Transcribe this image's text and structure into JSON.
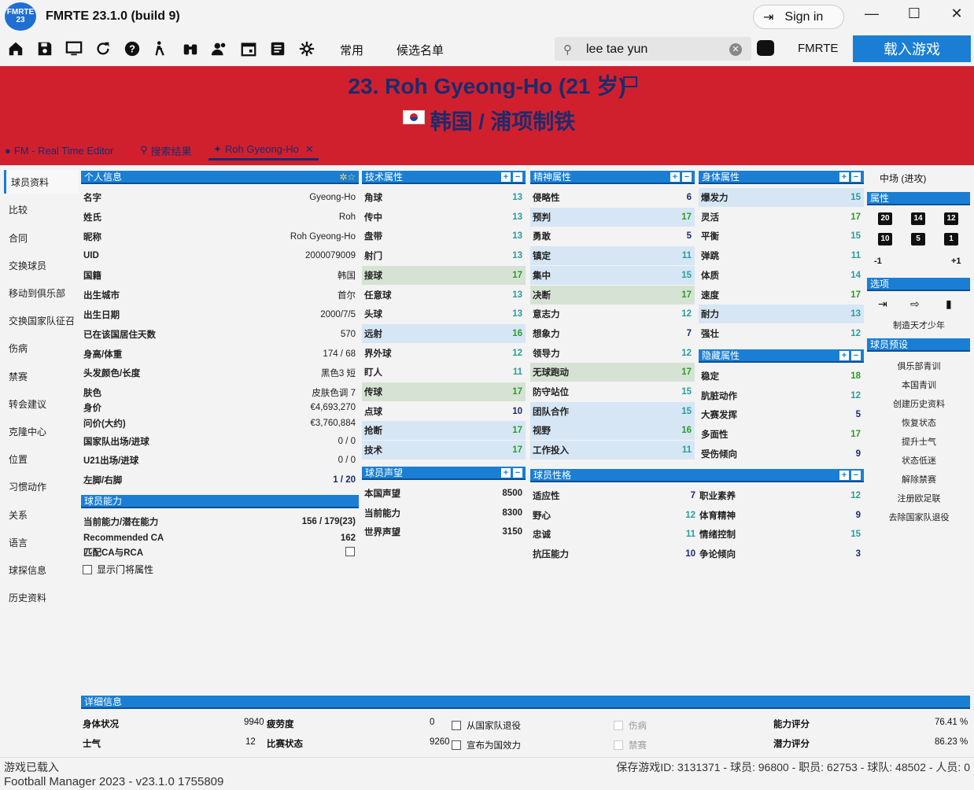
{
  "app": {
    "logo": "FMRTE 23",
    "title": "FMRTE 23.1.0 (build 9)",
    "signin": "Sign in"
  },
  "toolbar": {
    "common": "常用",
    "shortlist": "候选名单",
    "search_value": "lee tae yun",
    "fmrte": "FMRTE",
    "load_game": "载入游戏"
  },
  "header": {
    "player_title": "23. Roh Gyeong-Ho (21 岁)",
    "club": "韩国 / 浦项制铁"
  },
  "tabs": [
    "FM - Real Time Editor",
    "搜索结果",
    "Roh Gyeong-Ho"
  ],
  "sidenav": [
    "球员资料",
    "比较",
    "合同",
    "交换球员",
    "移动到俱乐部",
    "交换国家队征召",
    "伤病",
    "禁赛",
    "转会建议",
    "克隆中心",
    "位置",
    "习惯动作",
    "关系",
    "语言",
    "球探信息",
    "历史资料"
  ],
  "personal": {
    "title": "个人信息",
    "rows": [
      {
        "label": "名字",
        "value": "Gyeong-Ho"
      },
      {
        "label": "姓氏",
        "value": "Roh"
      },
      {
        "label": "昵称",
        "value": "Roh Gyeong-Ho"
      },
      {
        "label": "UID",
        "value": "2000079009"
      },
      {
        "label": "国籍",
        "value": "韩国"
      },
      {
        "label": "出生城市",
        "value": "首尔"
      },
      {
        "label": "出生日期",
        "value": "2000/7/5"
      },
      {
        "label": "已在该国居住天数",
        "value": "570"
      },
      {
        "label": "身高/体重",
        "value": "174 / 68"
      },
      {
        "label": "头发颜色/长度",
        "value": "黑色3   短"
      },
      {
        "label": "肤色",
        "value": "皮肤色调 7"
      },
      {
        "label": "身价",
        "value": "€4,693,270"
      },
      {
        "label": "问价(大约)",
        "value": "€3,760,884"
      },
      {
        "label": "国家队出场/进球",
        "value": "0 / 0"
      },
      {
        "label": "U21出场/进球",
        "value": "0 / 0"
      },
      {
        "label": "左脚/右脚",
        "value": "1 / 20"
      }
    ]
  },
  "ability": {
    "title": "球员能力",
    "rows": [
      {
        "label": "当前能力/潜在能力",
        "value": "156 / 179(23)"
      },
      {
        "label": "Recommended CA",
        "value": "162"
      },
      {
        "label": "匹配CA与RCA",
        "value": ""
      }
    ],
    "show_gk": "显示门将属性"
  },
  "technical": {
    "title": "技术属性",
    "rows": [
      {
        "label": "角球",
        "value": "13"
      },
      {
        "label": "传中",
        "value": "13"
      },
      {
        "label": "盘带",
        "value": "13"
      },
      {
        "label": "射门",
        "value": "13"
      },
      {
        "label": "接球",
        "value": "17"
      },
      {
        "label": "任意球",
        "value": "13"
      },
      {
        "label": "头球",
        "value": "13"
      },
      {
        "label": "远射",
        "value": "16"
      },
      {
        "label": "界外球",
        "value": "12"
      },
      {
        "label": "盯人",
        "value": "11"
      },
      {
        "label": "传球",
        "value": "17"
      },
      {
        "label": "点球",
        "value": "10"
      },
      {
        "label": "抢断",
        "value": "17"
      },
      {
        "label": "技术",
        "value": "17"
      }
    ]
  },
  "mental": {
    "title": "精神属性",
    "rows": [
      {
        "label": "侵略性",
        "value": "6"
      },
      {
        "label": "预判",
        "value": "17"
      },
      {
        "label": "勇敢",
        "value": "5"
      },
      {
        "label": "镇定",
        "value": "11"
      },
      {
        "label": "集中",
        "value": "15"
      },
      {
        "label": "决断",
        "value": "17"
      },
      {
        "label": "意志力",
        "value": "12"
      },
      {
        "label": "想象力",
        "value": "7"
      },
      {
        "label": "领导力",
        "value": "12"
      },
      {
        "label": "无球跑动",
        "value": "17"
      },
      {
        "label": "防守站位",
        "value": "15"
      },
      {
        "label": "团队合作",
        "value": "15"
      },
      {
        "label": "视野",
        "value": "16"
      },
      {
        "label": "工作投入",
        "value": "11"
      }
    ]
  },
  "physical": {
    "title": "身体属性",
    "rows": [
      {
        "label": "爆发力",
        "value": "15"
      },
      {
        "label": "灵活",
        "value": "17"
      },
      {
        "label": "平衡",
        "value": "15"
      },
      {
        "label": "弹跳",
        "value": "11"
      },
      {
        "label": "体质",
        "value": "14"
      },
      {
        "label": "速度",
        "value": "17"
      },
      {
        "label": "耐力",
        "value": "13"
      },
      {
        "label": "强壮",
        "value": "12"
      }
    ]
  },
  "hidden": {
    "title": "隐藏属性",
    "rows": [
      {
        "label": "稳定",
        "value": "18"
      },
      {
        "label": "肮脏动作",
        "value": "12"
      },
      {
        "label": "大赛发挥",
        "value": "5"
      },
      {
        "label": "多面性",
        "value": "17"
      },
      {
        "label": "受伤倾向",
        "value": "9"
      }
    ]
  },
  "reputation": {
    "title": "球员声望",
    "rows": [
      {
        "label": "本国声望",
        "value": "8500"
      },
      {
        "label": "当前能力",
        "value": "8300"
      },
      {
        "label": "世界声望",
        "value": "3150"
      }
    ]
  },
  "personality": {
    "title": "球员性格",
    "rows": [
      {
        "label": "适应性",
        "value": "7",
        "label2": "职业素养",
        "value2": "12"
      },
      {
        "label": "野心",
        "value": "12",
        "label2": "体育精神",
        "value2": "9"
      },
      {
        "label": "忠诚",
        "value": "11",
        "label2": "情绪控制",
        "value2": "15"
      },
      {
        "label": "抗压能力",
        "value": "10",
        "label2": "争论倾向",
        "value2": "3"
      }
    ]
  },
  "right": {
    "position": "中场 (进攻)",
    "attrs_title": "属性",
    "btns": [
      "20",
      "14",
      "12",
      "10",
      "5",
      "1"
    ],
    "minus": "-1",
    "plus": "+1",
    "options_title": "选项",
    "wonderkid": "制造天才少年",
    "presets_title": "球员预设",
    "presets": [
      "俱乐部青训",
      "本国青训",
      "创建历史资料",
      "恢复状态",
      "提升士气",
      "状态低迷",
      "解除禁赛",
      "注册欧足联",
      "去除国家队退役"
    ]
  },
  "details": {
    "title": "详细信息",
    "condition_label": "身体状况",
    "condition": "9940",
    "fatigue_label": "疲劳度",
    "fatigue": "0",
    "retire_intl": "从国家队退役",
    "injured": "伤病",
    "ability_rating_label": "能力评分",
    "ability_rating": "76.41 %",
    "morale_label": "士气",
    "morale": "12",
    "match_form_label": "比赛状态",
    "match_form": "9260",
    "declare_intl": "宣布为国效力",
    "banned": "禁赛",
    "potential_rating_label": "潜力评分",
    "potential_rating": "86.23 %"
  },
  "status": {
    "loaded": "游戏已载入",
    "version": "Football Manager 2023 - v23.1.0 1755809",
    "stats": "保存游戏ID: 3131371 - 球员: 96800 - 职员: 62753 - 球队: 48502 - 人员: 0"
  },
  "colors": {
    "accent": "#1a7fd4",
    "header": "#d0202e",
    "title": "#1c2b6c",
    "green": "#2a9d2a"
  }
}
